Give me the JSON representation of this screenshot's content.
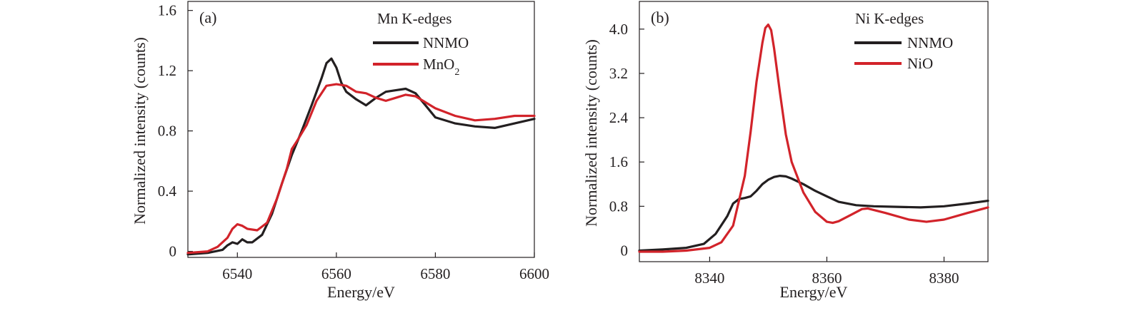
{
  "chart_data": [
    {
      "type": "line",
      "panel_label": "(a)",
      "xlabel": "Energy/eV",
      "ylabel": "Normalized intensity (counts)",
      "xlim": [
        6530,
        6600
      ],
      "ylim": [
        -0.04,
        1.66
      ],
      "x_ticks": [
        6540,
        6560,
        6580,
        6600
      ],
      "y_ticks": [
        0,
        0.4,
        0.8,
        1.2,
        1.6
      ],
      "x_tick_labels": [
        "6540",
        "6560",
        "6580",
        "6600"
      ],
      "y_tick_labels": [
        "0",
        "0.4",
        "0.8",
        "1.2",
        "1.6"
      ],
      "legend": {
        "title": "Mn K-edges",
        "position": "top-right"
      },
      "grid": false,
      "series": [
        {
          "name": "NNMO",
          "color": "#231f20",
          "x": [
            6530,
            6534,
            6537,
            6538,
            6539,
            6540,
            6541,
            6542,
            6543,
            6545,
            6547,
            6549,
            6551,
            6553,
            6555,
            6557,
            6558,
            6559,
            6560,
            6561,
            6562,
            6564,
            6566,
            6568,
            6570,
            6572,
            6574,
            6576,
            6578,
            6580,
            6584,
            6588,
            6592,
            6596,
            6600
          ],
          "y": [
            -0.02,
            -0.01,
            0.01,
            0.04,
            0.06,
            0.05,
            0.08,
            0.06,
            0.06,
            0.11,
            0.25,
            0.45,
            0.64,
            0.8,
            0.97,
            1.15,
            1.25,
            1.28,
            1.22,
            1.12,
            1.06,
            1.01,
            0.97,
            1.02,
            1.06,
            1.07,
            1.08,
            1.05,
            0.97,
            0.89,
            0.85,
            0.83,
            0.82,
            0.85,
            0.88
          ]
        },
        {
          "name": "MnO2",
          "label_parts": [
            "MnO",
            "2"
          ],
          "color": "#d2232a",
          "x": [
            6530,
            6534,
            6536,
            6538,
            6539,
            6540,
            6541,
            6542,
            6544,
            6546,
            6548,
            6550,
            6551,
            6552,
            6554,
            6556,
            6558,
            6560,
            6562,
            6564,
            6566,
            6568,
            6570,
            6572,
            6574,
            6576,
            6578,
            6580,
            6584,
            6588,
            6592,
            6596,
            6600
          ],
          "y": [
            -0.01,
            0.0,
            0.03,
            0.09,
            0.15,
            0.18,
            0.17,
            0.15,
            0.14,
            0.19,
            0.35,
            0.55,
            0.68,
            0.73,
            0.84,
            1.0,
            1.1,
            1.11,
            1.1,
            1.06,
            1.05,
            1.02,
            1.0,
            1.02,
            1.04,
            1.03,
            0.99,
            0.95,
            0.9,
            0.87,
            0.88,
            0.9,
            0.9
          ]
        }
      ]
    },
    {
      "type": "line",
      "panel_label": "(b)",
      "xlabel": "Energy/eV",
      "ylabel": "Normalized intensity (counts)",
      "xlim": [
        8328,
        8387.5
      ],
      "ylim": [
        -0.2,
        4.5
      ],
      "x_ticks": [
        8340,
        8360,
        8380
      ],
      "y_ticks": [
        0,
        0.8,
        1.6,
        2.4,
        3.2,
        4.0
      ],
      "x_tick_labels": [
        "8340",
        "8360",
        "8380"
      ],
      "y_tick_labels": [
        "0",
        "0.8",
        "1.6",
        "2.4",
        "3.2",
        "4.0"
      ],
      "legend": {
        "title": "Ni K-edges",
        "position": "top-right"
      },
      "grid": false,
      "series": [
        {
          "name": "NNMO",
          "color": "#231f20",
          "x": [
            8328,
            8332,
            8336,
            8339,
            8341,
            8343,
            8344,
            8345,
            8346,
            8347,
            8348,
            8349,
            8350,
            8351,
            8352,
            8353,
            8354,
            8355,
            8356,
            8358,
            8360,
            8362,
            8365,
            8368,
            8372,
            8376,
            8380,
            8384,
            8387.5
          ],
          "y": [
            0.0,
            0.02,
            0.05,
            0.12,
            0.3,
            0.62,
            0.85,
            0.93,
            0.95,
            0.98,
            1.08,
            1.2,
            1.28,
            1.33,
            1.35,
            1.34,
            1.3,
            1.25,
            1.2,
            1.08,
            0.98,
            0.88,
            0.82,
            0.8,
            0.79,
            0.78,
            0.8,
            0.85,
            0.9
          ]
        },
        {
          "name": "NiO",
          "color": "#d2232a",
          "x": [
            8328,
            8332,
            8336,
            8340,
            8342,
            8344,
            8346,
            8347,
            8348,
            8349,
            8349.5,
            8350,
            8350.5,
            8351,
            8352,
            8353,
            8354,
            8356,
            8358,
            8360,
            8361,
            8362,
            8364,
            8366,
            8367,
            8370,
            8374,
            8377,
            8380,
            8384,
            8387.5
          ],
          "y": [
            -0.02,
            -0.02,
            0.0,
            0.05,
            0.15,
            0.45,
            1.35,
            2.15,
            3.05,
            3.75,
            4.02,
            4.08,
            3.98,
            3.65,
            2.85,
            2.1,
            1.6,
            1.05,
            0.7,
            0.52,
            0.5,
            0.53,
            0.64,
            0.75,
            0.76,
            0.68,
            0.56,
            0.52,
            0.56,
            0.68,
            0.78
          ]
        }
      ]
    }
  ]
}
